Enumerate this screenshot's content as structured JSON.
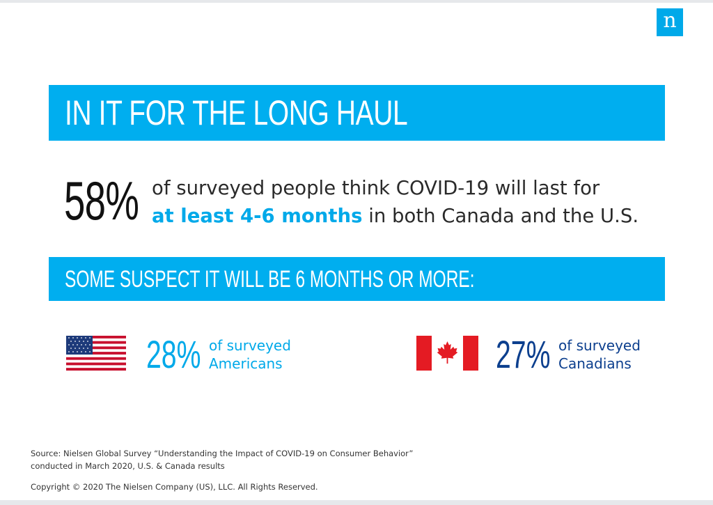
{
  "logo": {
    "letter": "n",
    "color": "#00a9e9"
  },
  "header": {
    "title": "IN IT FOR THE LONG HAUL"
  },
  "headline_stat": {
    "percent": "58%",
    "line1": "of surveyed people think COVID-19 will last for",
    "highlight": "at least 4-6 months",
    "line2_rest": " in both Canada and the U.S."
  },
  "subheader": {
    "title": "SOME SUSPECT IT WILL BE 6 MONTHS OR MORE:"
  },
  "stats": {
    "us": {
      "percent": "28%",
      "line1": "of surveyed",
      "line2": "Americans",
      "flag": "us-flag-icon"
    },
    "ca": {
      "percent": "27%",
      "line1": "of surveyed",
      "line2": "Canadians",
      "flag": "canada-flag-icon"
    }
  },
  "footer": {
    "source_line1": "Source: Nielsen Global Survey “Understanding the Impact of COVID-19 on Consumer Behavior”",
    "source_line2": "conducted in March 2020, U.S. & Canada results",
    "copyright": "Copyright © 2020 The Nielsen Company (US), LLC. All Rights Reserved."
  },
  "colors": {
    "banner": "#00aeef",
    "accent_light": "#00a9e9",
    "accent_dark": "#0c3f8e",
    "us_red": "#c8102e",
    "us_blue": "#1d3a7a",
    "ca_red": "#e41b23"
  }
}
